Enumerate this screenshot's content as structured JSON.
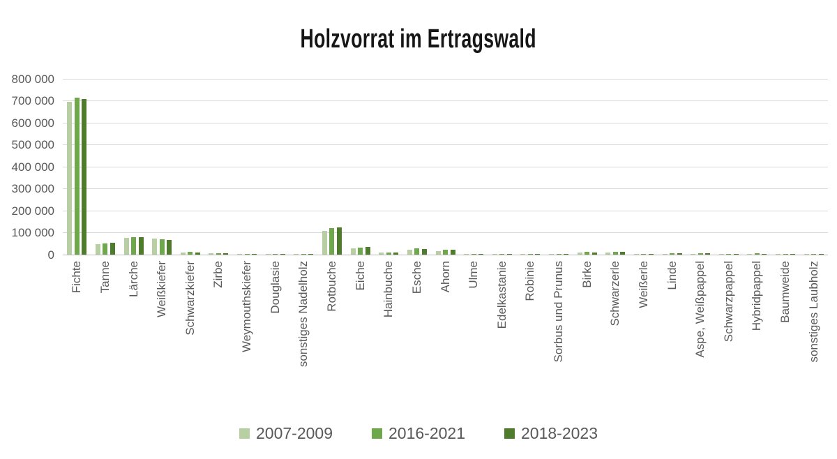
{
  "title": "Holzvorrat im Ertragswald",
  "colors": {
    "series_light": "#b7cfa3",
    "series_medium": "#6fa84c",
    "series_dark": "#4f7b2d",
    "gridline": "#d9d9d9",
    "axis_line": "#bdbdbd",
    "axis_text": "#595959",
    "title_text": "#161616",
    "background": "#ffffff"
  },
  "chart_data": {
    "type": "bar",
    "title": "Holzvorrat im Ertragswald",
    "xlabel": "",
    "ylabel": "",
    "ylim": [
      0,
      800000
    ],
    "ytick_interval": 100000,
    "ytick_labels": [
      "0",
      "100 000",
      "200 000",
      "300 000",
      "400 000",
      "500 000",
      "600 000",
      "700 000",
      "800 000"
    ],
    "grid": true,
    "legend_position": "bottom",
    "categories": [
      "Fichte",
      "Tanne",
      "Lärche",
      "Weißkiefer",
      "Schwarzkiefer",
      "Zirbe",
      "Weymouthskiefer",
      "Douglasie",
      "sonstiges Nadelholz",
      "Rotbuche",
      "Eiche",
      "Hainbuche",
      "Esche",
      "Ahorn",
      "Ulme",
      "Edelkastanie",
      "Robinie",
      "Sorbus und Prunus",
      "Birke",
      "Schwarzerle",
      "Weißerle",
      "Linde",
      "Aspe, Weißpappel",
      "Schwarzpappel",
      "Hybridpappel",
      "Baumweide",
      "sonstiges Laubholz"
    ],
    "series": [
      {
        "name": "2007-2009",
        "color": "#b7cfa3",
        "values": [
          695000,
          48000,
          75000,
          74000,
          9000,
          5000,
          400,
          1000,
          400,
          107000,
          27000,
          8000,
          23000,
          16000,
          1000,
          300,
          1500,
          2000,
          9000,
          9000,
          2000,
          3000,
          4000,
          800,
          3000,
          1000,
          1500
        ]
      },
      {
        "name": "2016-2021",
        "color": "#6fa84c",
        "values": [
          713000,
          52000,
          80000,
          69000,
          12000,
          7000,
          400,
          1500,
          500,
          121000,
          33000,
          11000,
          28000,
          22000,
          1500,
          500,
          2500,
          3000,
          12000,
          12000,
          2500,
          5000,
          6000,
          1000,
          5000,
          1500,
          2000
        ]
      },
      {
        "name": "2018-2023",
        "color": "#4f7b2d",
        "values": [
          709000,
          53000,
          80000,
          66000,
          11000,
          7000,
          400,
          1500,
          500,
          123000,
          34000,
          11000,
          26000,
          22000,
          1500,
          500,
          2500,
          3000,
          11000,
          12000,
          2500,
          5000,
          6000,
          1000,
          4000,
          1500,
          2000
        ]
      }
    ]
  }
}
